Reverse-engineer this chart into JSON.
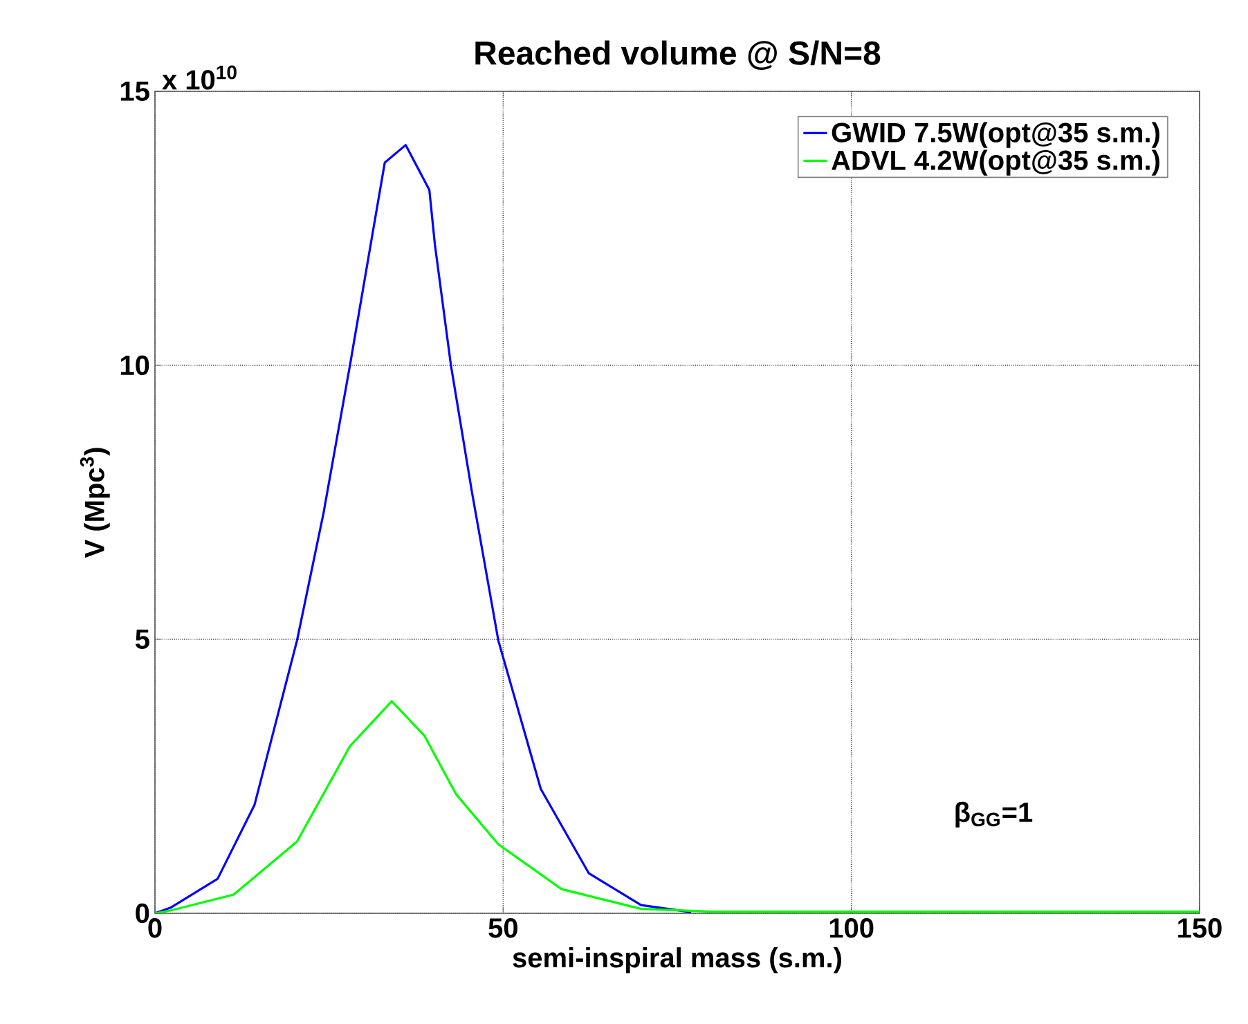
{
  "chart_data": {
    "type": "line",
    "title": "Reached volume @ S/N=8",
    "xlabel": "semi-inspiral mass (s.m.)",
    "ylabel": "V (Mpc$^{3}$)",
    "annotations": [
      "x 10$^{10}$",
      "β$_{GG}$=1"
    ],
    "xlim": [
      0,
      150
    ],
    "ylim": [
      0,
      15
    ],
    "xticks": [
      0,
      50,
      100,
      150
    ],
    "yticks": [
      0,
      5,
      10,
      15
    ],
    "grid": true,
    "legend": "top right",
    "marker": "none",
    "line_style": "solid",
    "series": [
      {
        "name": "GWID 7.5W(opt@35 s.m.)",
        "color": "#0000ff",
        "x": [
          0,
          2.2,
          9.0,
          14.3,
          20.4,
          24.2,
          28.0,
          30.7,
          33.0,
          36.0,
          39.4,
          40.2,
          42.5,
          45.5,
          49.3,
          55.4,
          62.3,
          69.8,
          77
        ],
        "values": [
          0,
          0.1,
          0.63,
          1.98,
          4.98,
          7.3,
          10.0,
          12.0,
          13.7,
          14.02,
          13.2,
          12.2,
          10.0,
          7.7,
          4.98,
          2.27,
          0.73,
          0.15,
          0.02
        ]
      },
      {
        "name": "ADVL 4.2W(opt@35 s.m.)",
        "color": "#00ff00",
        "x": [
          0,
          2.2,
          11.3,
          20.4,
          28.0,
          34.0,
          38.7,
          43.2,
          49.3,
          58.4,
          69.8,
          80,
          100,
          150
        ],
        "values": [
          0,
          0.05,
          0.34,
          1.31,
          3.05,
          3.87,
          3.24,
          2.18,
          1.26,
          0.44,
          0.08,
          0.03,
          0.03,
          0.03
        ]
      }
    ]
  }
}
